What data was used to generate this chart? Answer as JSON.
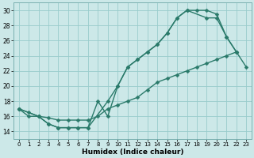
{
  "title": "",
  "xlabel": "Humidex (Indice chaleur)",
  "xlim": [
    -0.5,
    23.5
  ],
  "ylim": [
    13.0,
    31.0
  ],
  "yticks": [
    14,
    16,
    18,
    20,
    22,
    24,
    26,
    28,
    30
  ],
  "xticks": [
    0,
    1,
    2,
    3,
    4,
    5,
    6,
    7,
    8,
    9,
    10,
    11,
    12,
    13,
    14,
    15,
    16,
    17,
    18,
    19,
    20,
    21,
    22,
    23
  ],
  "bg_color": "#cce8e8",
  "grid_color": "#99cccc",
  "line_color": "#2a7a6a",
  "line1_x": [
    0,
    1,
    2,
    3,
    4,
    5,
    6,
    7,
    8,
    9,
    10,
    11,
    12,
    13,
    14,
    15,
    16,
    17,
    18,
    19,
    20,
    21,
    22
  ],
  "line1_y": [
    17.0,
    16.0,
    16.0,
    15.0,
    14.5,
    14.5,
    14.5,
    14.5,
    18.0,
    16.0,
    20.0,
    22.5,
    23.5,
    24.5,
    25.5,
    27.0,
    29.0,
    30.0,
    30.0,
    30.0,
    29.5,
    26.5,
    24.5
  ],
  "line2_x": [
    0,
    2,
    3,
    4,
    5,
    6,
    7,
    9,
    10,
    11,
    12,
    13,
    14,
    15,
    16,
    17,
    19,
    20,
    21,
    22
  ],
  "line2_y": [
    17.0,
    16.0,
    15.0,
    14.5,
    14.5,
    14.5,
    14.5,
    18.0,
    20.0,
    22.5,
    23.5,
    24.5,
    25.5,
    27.0,
    29.0,
    30.0,
    29.0,
    29.0,
    26.5,
    24.5
  ],
  "line3_x": [
    0,
    1,
    2,
    3,
    4,
    5,
    6,
    7,
    8,
    9,
    10,
    11,
    12,
    13,
    14,
    15,
    16,
    17,
    18,
    19,
    20,
    21,
    22,
    23
  ],
  "line3_y": [
    17.0,
    16.5,
    16.0,
    15.8,
    15.5,
    15.5,
    15.5,
    15.5,
    16.0,
    17.0,
    17.5,
    18.0,
    18.5,
    19.5,
    20.5,
    21.0,
    21.5,
    22.0,
    22.5,
    23.0,
    23.5,
    24.0,
    24.5,
    22.5
  ],
  "marker": "D",
  "markersize": 2.5,
  "linewidth": 1.0
}
